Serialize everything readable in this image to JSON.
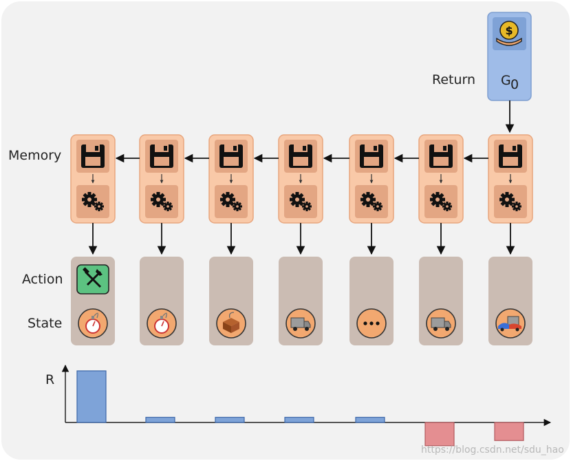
{
  "labels": {
    "memory": "Memory",
    "action": "Action",
    "state": "State",
    "return": "Return",
    "return_value": "G",
    "return_subscript": "0",
    "reward_axis": "R"
  },
  "watermark": "https://blog.csdn.net/sdu_hao",
  "steps": [
    {
      "action": "tools-icon",
      "state": "stopwatch-icon"
    },
    {
      "action": "",
      "state": "stopwatch-icon"
    },
    {
      "action": "",
      "state": "box-icon"
    },
    {
      "action": "",
      "state": "truck-icon"
    },
    {
      "action": "",
      "state": "ellipsis-icon"
    },
    {
      "action": "",
      "state": "truck-icon"
    },
    {
      "action": "",
      "state": "crash-icon"
    }
  ],
  "rewards": [
    1,
    0.1,
    0.1,
    0.1,
    0.1,
    -0.45,
    -0.35
  ],
  "colors": {
    "memory_fill": "#f9c9a8",
    "memory_inner": "#e3a683",
    "step_fill": "#cbbcb3",
    "return_fill": "#9fbce8",
    "action_fill": "#5cc281",
    "positive_bar": "#7ea3d8",
    "negative_bar": "#e48e91",
    "background": "#f2f2f2"
  }
}
